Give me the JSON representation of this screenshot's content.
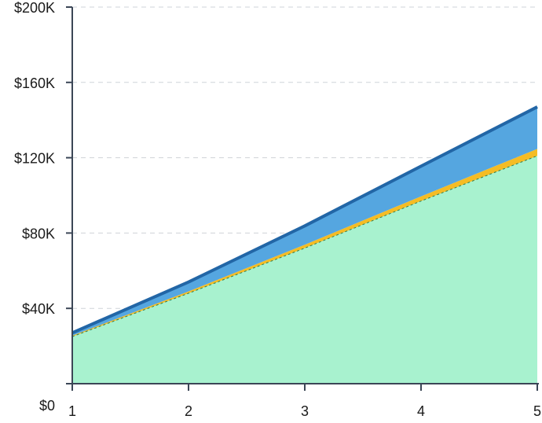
{
  "chart_data": {
    "type": "area",
    "stacked": true,
    "x": [
      1,
      2,
      3,
      4,
      5
    ],
    "x_tick_labels": [
      "1",
      "2",
      "3",
      "4",
      "5"
    ],
    "ylim": [
      0,
      200000
    ],
    "y_ticks": [
      0,
      40000,
      80000,
      120000,
      160000,
      200000
    ],
    "y_tick_labels": [
      "$0",
      "$40K",
      "$80K",
      "$120K",
      "$160K",
      "$200K"
    ],
    "grid": true,
    "legend": "none",
    "series": [
      {
        "values": [
          25000,
          48000,
          72000,
          97000,
          121000
        ],
        "color": "#a8f2cf"
      },
      {
        "values": [
          500,
          1000,
          1800,
          2500,
          3700
        ],
        "color": "#f5bc24"
      },
      {
        "values": [
          1500,
          5000,
          10000,
          16000,
          22300
        ],
        "color": "#55a6e0",
        "edge_color": "#2266a6"
      }
    ]
  }
}
